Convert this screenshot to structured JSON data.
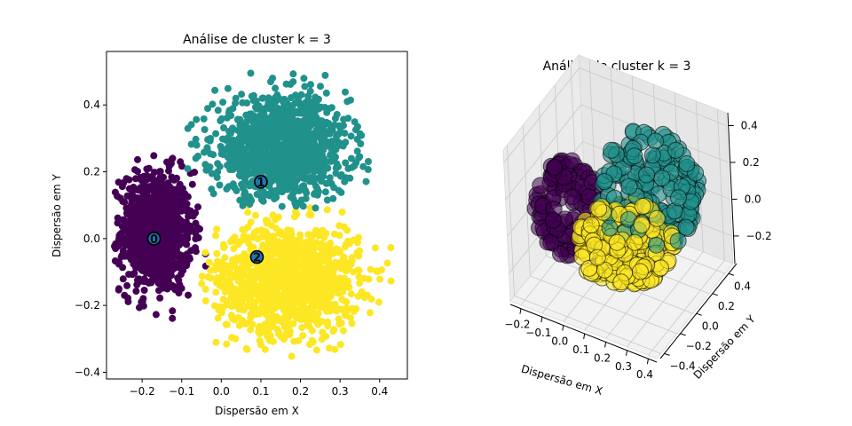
{
  "chart_data": [
    {
      "type": "scatter",
      "title": "Análise de cluster k = 3",
      "xlabel": "Dispersão em X",
      "ylabel": "Dispersão em Y",
      "xlim": [
        -0.29,
        0.47
      ],
      "ylim": [
        -0.42,
        0.56
      ],
      "xticks": [
        -0.2,
        -0.1,
        0.0,
        0.1,
        0.2,
        0.3,
        0.4
      ],
      "xtick_labels": [
        "−0.2",
        "−0.1",
        "0.0",
        "0.1",
        "0.2",
        "0.3",
        "0.4"
      ],
      "yticks": [
        -0.4,
        -0.2,
        0.0,
        0.2,
        0.4
      ],
      "ytick_labels": [
        "−0.4",
        "−0.2",
        "0.0",
        "0.2",
        "0.4"
      ],
      "grid": false,
      "series": [
        {
          "cluster": 0,
          "color": "#440154",
          "x_range": [
            -0.27,
            -0.03
          ],
          "y_range": [
            -0.25,
            0.3
          ]
        },
        {
          "cluster": 1,
          "color": "#21918c",
          "x_range": [
            -0.09,
            0.38
          ],
          "y_range": [
            0.06,
            0.51
          ]
        },
        {
          "cluster": 2,
          "color": "#fde725",
          "x_range": [
            -0.06,
            0.43
          ],
          "y_range": [
            -0.37,
            0.1
          ]
        }
      ],
      "centroids": [
        {
          "label": "0",
          "x": -0.17,
          "y": 0.0
        },
        {
          "label": "1",
          "x": 0.1,
          "y": 0.17
        },
        {
          "label": "2",
          "x": 0.09,
          "y": -0.055
        }
      ],
      "centroid_color": "#1f77b4"
    },
    {
      "type": "scatter",
      "projection": "3d",
      "title": "Análise de cluster k = 3",
      "xlabel": "Dispersão em X",
      "ylabel": "Dispersão em Y",
      "xticks": [
        -0.2,
        -0.1,
        0.0,
        0.1,
        0.2,
        0.3,
        0.4
      ],
      "xtick_labels": [
        "−0.2",
        "−0.1",
        "0.0",
        "0.1",
        "0.2",
        "0.3",
        "0.4"
      ],
      "yticks": [
        -0.4,
        -0.2,
        0.0,
        0.2,
        0.4
      ],
      "ytick_labels": [
        "−0.4",
        "−0.2",
        "0.0",
        "0.2",
        "0.4"
      ],
      "zticks": [
        -0.2,
        0.0,
        0.2,
        0.4
      ],
      "ztick_labels": [
        "−0.2",
        "0.0",
        "0.2",
        "0.4"
      ],
      "grid": true,
      "series": [
        {
          "cluster": 0,
          "color": "#440154"
        },
        {
          "cluster": 1,
          "color": "#21918c"
        },
        {
          "cluster": 2,
          "color": "#fde725"
        }
      ]
    }
  ]
}
